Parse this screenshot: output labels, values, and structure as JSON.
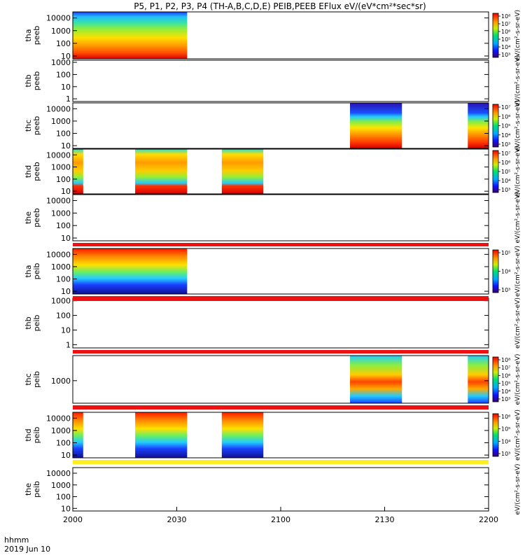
{
  "title": "P5, P1, P2, P3, P4 (TH-A,B,C,D,E) PEIB,PEEB EFlux eV/(eV*cm²*sec*sr)",
  "time_axis": {
    "label_line1": "hhmm",
    "label_line2": "2019 Jun 10",
    "ticks": [
      "2000",
      "2030",
      "2100",
      "2130",
      "2200"
    ]
  },
  "colorbar_unit_label": "eV/(cm²-s-sr-eV)",
  "chart_data": [
    {
      "type": "heatmap",
      "panel": "tha peeb",
      "ylabel": [
        "tha",
        "peeb"
      ],
      "yticks": [
        "10000",
        "1000",
        "100",
        "10"
      ],
      "yscale": "log",
      "ylim": [
        6,
        30000
      ],
      "data_blocks": [
        [
          "2000",
          "2033"
        ]
      ],
      "colorbar": {
        "scale": "log",
        "ticks": [
          "10⁸",
          "10⁷",
          "10⁶",
          "10⁵",
          "10⁴",
          "10³"
        ]
      }
    },
    {
      "type": "heatmap",
      "panel": "thb peeb",
      "ylabel": [
        "thb",
        "peeb"
      ],
      "yticks": [
        "1000",
        "100",
        "10",
        "1"
      ],
      "yscale": "log",
      "ylim": [
        0.6,
        1500
      ],
      "data_blocks": []
    },
    {
      "type": "heatmap",
      "panel": "thc peeb",
      "ylabel": [
        "thc",
        "peeb"
      ],
      "yticks": [
        "10000",
        "1000",
        "100",
        "10"
      ],
      "yscale": "log",
      "ylim": [
        6,
        30000
      ],
      "data_blocks": [
        [
          "2120",
          "2135"
        ],
        [
          "2154",
          "2200"
        ]
      ],
      "colorbar": {
        "scale": "log",
        "ticks": [
          "10⁷",
          "10⁶",
          "10⁵",
          "10⁴",
          "10³"
        ]
      }
    },
    {
      "type": "heatmap",
      "panel": "thd peeb",
      "ylabel": [
        "thd",
        "peeb"
      ],
      "yticks": [
        "10000",
        "1000",
        "100",
        "10"
      ],
      "yscale": "log",
      "ylim": [
        6,
        30000
      ],
      "data_blocks": [
        [
          "2000",
          "2003"
        ],
        [
          "2018",
          "2033"
        ],
        [
          "2043",
          "2055"
        ]
      ],
      "colorbar": {
        "scale": "log",
        "ticks": [
          "10⁷",
          "10⁶",
          "10⁵",
          "10⁴",
          "10³"
        ]
      }
    },
    {
      "type": "heatmap",
      "panel": "the peeb",
      "ylabel": [
        "the",
        "peeb"
      ],
      "yticks": [
        "10000",
        "1000",
        "100",
        "10"
      ],
      "yscale": "log",
      "ylim": [
        6,
        30000
      ],
      "data_blocks": []
    },
    {
      "type": "heatmap",
      "panel": "tha peib",
      "ylabel": [
        "tha",
        "peib"
      ],
      "yticks": [
        "10000",
        "1000",
        "100",
        "10"
      ],
      "yscale": "log",
      "ylim": [
        6,
        30000
      ],
      "data_blocks": [
        [
          "2000",
          "2033"
        ]
      ],
      "colorbar": {
        "scale": "log",
        "ticks": [
          "10⁵",
          "10⁴",
          "10³"
        ]
      }
    },
    {
      "type": "heatmap",
      "panel": "thb peib",
      "ylabel": [
        "thb",
        "peib"
      ],
      "yticks": [
        "1000",
        "100",
        "10",
        "1"
      ],
      "yscale": "log",
      "ylim": [
        0.6,
        1500
      ],
      "data_blocks": []
    },
    {
      "type": "heatmap",
      "panel": "thc peib",
      "ylabel": [
        "thc",
        "peib"
      ],
      "yticks": [
        "1000"
      ],
      "yscale": "log",
      "ylim": [
        200,
        6000
      ],
      "data_blocks": [
        [
          "2120",
          "2135"
        ],
        [
          "2154",
          "2200"
        ]
      ],
      "colorbar": {
        "scale": "log",
        "ticks": [
          "10⁸",
          "10⁷",
          "10⁶",
          "10⁵",
          "10⁴",
          "10³"
        ]
      }
    },
    {
      "type": "heatmap",
      "panel": "thd peib",
      "ylabel": [
        "thd",
        "peib"
      ],
      "yticks": [
        "10000",
        "1000",
        "100",
        "10"
      ],
      "yscale": "log",
      "ylim": [
        6,
        30000
      ],
      "data_blocks": [
        [
          "2000",
          "2003"
        ],
        [
          "2018",
          "2033"
        ],
        [
          "2043",
          "2055"
        ]
      ],
      "colorbar": {
        "scale": "log",
        "ticks": [
          "10⁶",
          "10⁵",
          "10⁴",
          "10³"
        ]
      }
    },
    {
      "type": "heatmap",
      "panel": "the peib",
      "ylabel": [
        "the",
        "peib"
      ],
      "yticks": [
        "10000",
        "1000",
        "100",
        "10"
      ],
      "yscale": "log",
      "ylim": [
        6,
        30000
      ],
      "data_blocks": []
    }
  ]
}
